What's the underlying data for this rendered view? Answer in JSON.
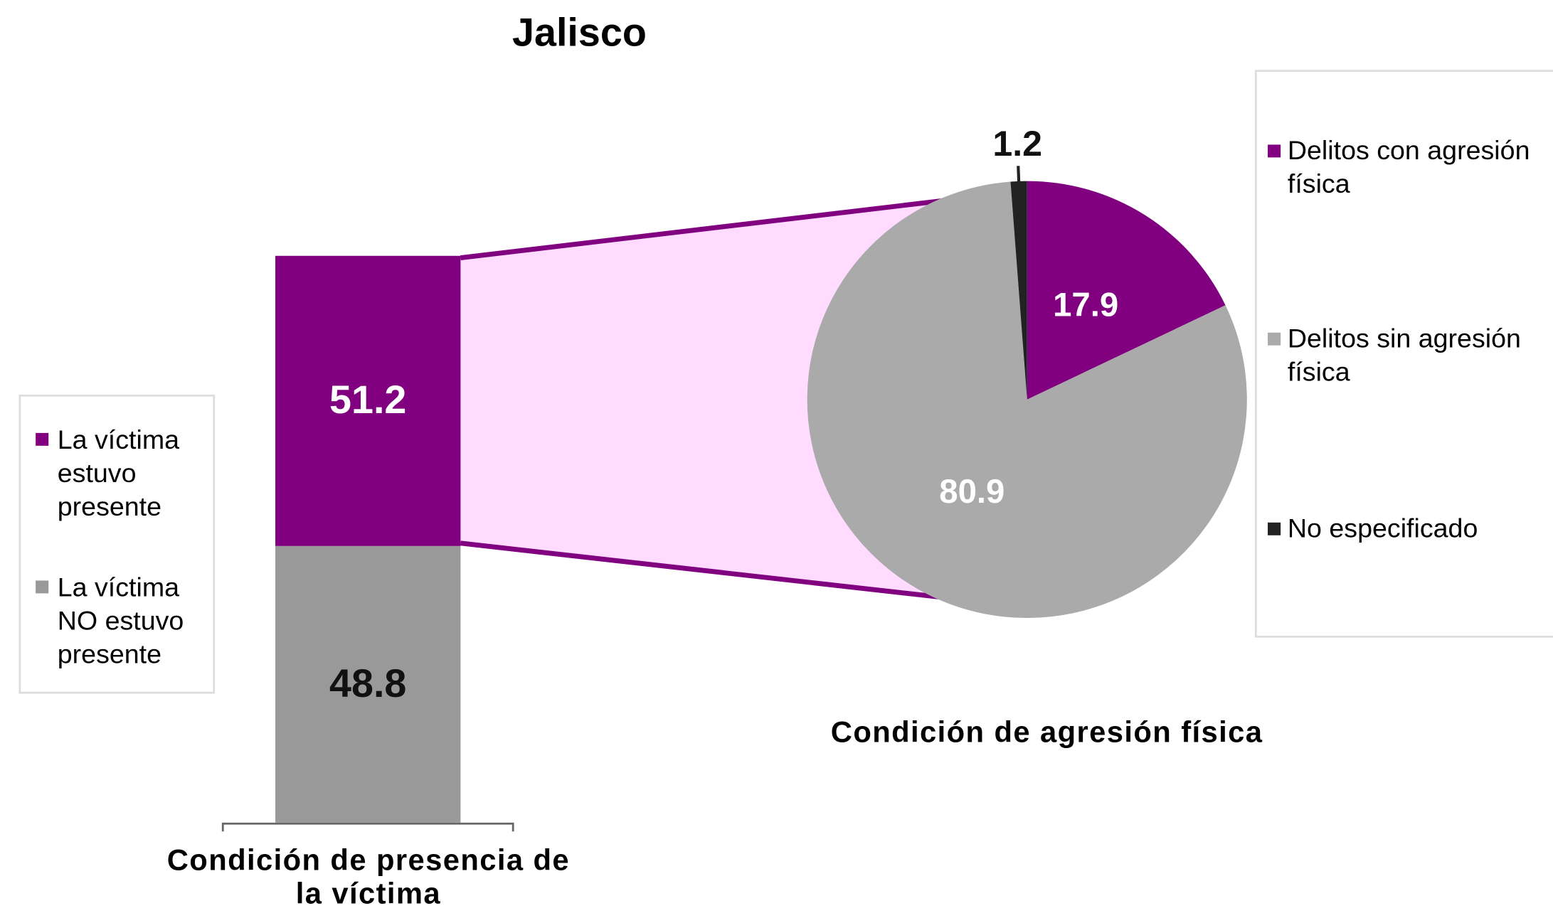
{
  "chart_data": [
    {
      "type": "stacked_bar",
      "title": "Jalisco",
      "xlabel": "Condición de presencia de la víctima",
      "series": [
        {
          "name": "La víctima estuvo presente",
          "color": "#800080",
          "values": [
            51.2
          ]
        },
        {
          "name": "La víctima NO estuvo presente",
          "color": "#999999",
          "values": [
            48.8
          ]
        }
      ]
    },
    {
      "type": "pie",
      "xlabel": "Condición de agresión física",
      "categories": [
        "Delitos con agresión física",
        "Delitos sin agresión física",
        "No especificado"
      ],
      "values": [
        17.9,
        80.9,
        1.2
      ],
      "colors": [
        "#800080",
        "#aaaaaa",
        "#222222"
      ]
    }
  ]
}
